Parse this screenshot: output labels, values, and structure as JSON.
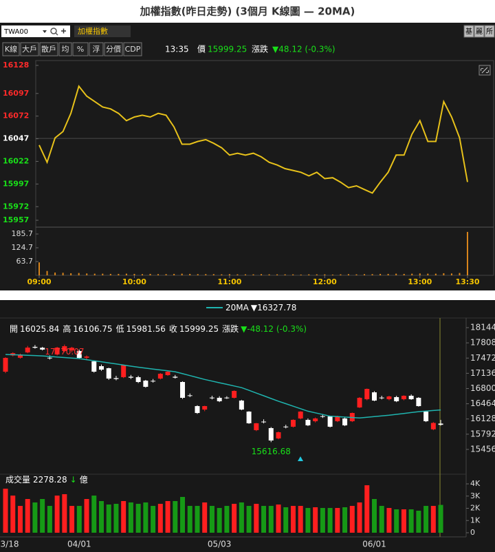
{
  "header": {
    "title": "加權指數(昨日走勢) (3個月 K線圖 — 20MA)"
  },
  "toolbar": {
    "symbol": "TWA00",
    "name": "加權指數",
    "buttons": [
      "基",
      "麗",
      "所"
    ]
  },
  "tabs": {
    "items": [
      "K線",
      "大戶",
      "散戶",
      "均",
      "%",
      "浮",
      "分價",
      "CDP"
    ],
    "time": "13:35",
    "price_label": "價",
    "price": "15999.25",
    "change_label": "漲跌",
    "change": "▼48.12 (-0.3%)"
  },
  "chart_data": [
    {
      "type": "line",
      "x": [
        "09:00",
        "09:05",
        "09:10",
        "09:15",
        "09:20",
        "09:25",
        "09:30",
        "09:35",
        "09:40",
        "09:45",
        "09:50",
        "09:55",
        "10:00",
        "10:05",
        "10:10",
        "10:15",
        "10:20",
        "10:25",
        "10:30",
        "10:35",
        "10:40",
        "10:45",
        "10:50",
        "10:55",
        "11:00",
        "11:05",
        "11:10",
        "11:15",
        "11:20",
        "11:25",
        "11:30",
        "11:35",
        "11:40",
        "11:45",
        "11:50",
        "11:55",
        "12:00",
        "12:05",
        "12:10",
        "12:15",
        "12:20",
        "12:25",
        "12:30",
        "12:35",
        "12:40",
        "12:45",
        "12:50",
        "12:55",
        "13:00",
        "13:05",
        "13:10",
        "13:15",
        "13:20",
        "13:25",
        "13:30"
      ],
      "values": [
        16040,
        16021,
        16048,
        16055,
        16075,
        16105,
        16094,
        16088,
        16082,
        16080,
        16075,
        16067,
        16071,
        16073,
        16071,
        16075,
        16073,
        16060,
        16041,
        16041,
        16044,
        16046,
        16042,
        16037,
        16029,
        16031,
        16029,
        16031,
        16027,
        16021,
        16018,
        16014,
        16012,
        16010,
        16006,
        16010,
        16003,
        16004,
        15999,
        15993,
        15995,
        15991,
        15987,
        15999,
        16010,
        16029,
        16029,
        16052,
        16067,
        16044,
        16044,
        16088,
        16071,
        16048,
        15999.25
      ],
      "color": "#e8c21a",
      "xlim": [
        "09:00",
        "13:30"
      ],
      "xticks": [
        "09:00",
        "10:00",
        "11:00",
        "12:00",
        "13:00",
        "13:30"
      ],
      "ylim": [
        15957,
        16128
      ],
      "yticks": [
        15957,
        15972,
        15997,
        16022,
        16047,
        16072,
        16097,
        16128
      ],
      "reference": 16047.37,
      "up_color": "#ff2a2a",
      "down_color": "#19e019",
      "flat_color": "#ffffff"
    },
    {
      "type": "bar",
      "values": [
        60,
        22,
        15,
        14,
        12,
        13,
        11,
        10,
        10,
        9,
        9,
        10,
        9,
        8,
        9,
        8,
        8,
        9,
        10,
        9,
        8,
        8,
        8,
        7,
        8,
        7,
        7,
        7,
        8,
        7,
        7,
        7,
        7,
        6,
        7,
        7,
        7,
        6,
        7,
        8,
        7,
        8,
        8,
        9,
        9,
        10,
        9,
        10,
        11,
        10,
        10,
        12,
        11,
        13,
        195
      ],
      "color": "#d9851c",
      "ylim": [
        2.7,
        207
      ],
      "yticks": [
        63.7,
        124.7,
        185.7
      ]
    },
    {
      "type": "candlestick",
      "categories": [
        "3/18",
        null,
        null,
        null,
        null,
        null,
        null,
        null,
        null,
        null,
        "04/01",
        null,
        null,
        null,
        null,
        null,
        null,
        null,
        null,
        null,
        null,
        null,
        null,
        null,
        null,
        null,
        null,
        null,
        null,
        "05/03",
        null,
        null,
        null,
        null,
        null,
        null,
        null,
        null,
        null,
        null,
        null,
        null,
        null,
        null,
        null,
        null,
        null,
        null,
        null,
        null,
        "06/01",
        null,
        null,
        null,
        null,
        null,
        null,
        null,
        null,
        null
      ],
      "open": [
        17172,
        17530,
        17480,
        17597,
        17720,
        17700,
        17480,
        17552,
        17628,
        17640,
        17628,
        17480,
        17400,
        17293,
        17248,
        17030,
        17050,
        17060,
        17050,
        16974,
        16970,
        17020,
        17096,
        17060,
        16944,
        16650,
        16412,
        16336,
        16600,
        16595,
        16600,
        16595,
        16534,
        16291,
        15881,
        16070,
        15926,
        15698,
        15960,
        15957,
        16139,
        16108,
        16078,
        16190,
        16184,
        16078,
        16139,
        16078,
        16382,
        16564,
        16716,
        16600,
        16564,
        16610,
        16564,
        16640,
        16595,
        16291,
        15900,
        16025.84
      ],
      "high": [
        17490,
        17600,
        17570,
        17740,
        17760,
        17720,
        17530,
        17720,
        17770.07,
        17720,
        17660,
        17530,
        17420,
        17330,
        17260,
        17080,
        17330,
        17100,
        17080,
        16990,
        17010,
        17140,
        17190,
        17100,
        16960,
        16690,
        16430,
        16420,
        16640,
        16630,
        16630,
        16760,
        16550,
        16300,
        16040,
        16120,
        15950,
        15850,
        16000,
        16120,
        16300,
        16140,
        16160,
        16230,
        16200,
        16200,
        16160,
        16270,
        16610,
        16800,
        16740,
        16640,
        16640,
        16640,
        16650,
        16670,
        16610,
        16310,
        16060,
        16106.75
      ],
      "low": [
        17140,
        17510,
        17460,
        17580,
        17680,
        17640,
        17440,
        17530,
        17600,
        17600,
        17450,
        17440,
        17150,
        17190,
        16990,
        16980,
        17030,
        17010,
        16920,
        16820,
        16930,
        17000,
        17080,
        17020,
        16570,
        16610,
        16240,
        16300,
        16560,
        16500,
        16570,
        16580,
        16320,
        16020,
        15860,
        16030,
        15616.68,
        15680,
        15920,
        15940,
        16120,
        15970,
        16050,
        16150,
        15940,
        16060,
        15970,
        16060,
        16370,
        16540,
        16520,
        16560,
        16540,
        16500,
        16540,
        16550,
        16400,
        16060,
        15880,
        15981.56
      ],
      "close": [
        17476,
        17580,
        17552,
        17703,
        17700,
        17660,
        17470,
        17703,
        17734,
        17700,
        17476,
        17506,
        17172,
        17217,
        17020,
        17010,
        17324,
        17040,
        16944,
        16838,
        16960,
        17126,
        17172,
        17040,
        16595,
        16640,
        16260,
        16412,
        16590,
        16519,
        16590,
        16747,
        16336,
        16033,
        16033,
        16063,
        15653,
        15835,
        15950,
        16108,
        16291,
        15987,
        16139,
        16180,
        15957,
        16184,
        15987,
        16260,
        16595,
        16791,
        16534,
        16590,
        16625,
        16519,
        16640,
        16564,
        16412,
        16078,
        16040,
        15999.25
      ],
      "up_color": "#ff1f1f",
      "down_color": "#ffffff",
      "ylim": [
        15045,
        18357
      ],
      "yticks": [
        15456,
        15792,
        16128,
        16464,
        16800,
        17136,
        17472,
        17808,
        18144
      ],
      "ma": {
        "name": "20MA",
        "legend_value": "▼16327.78",
        "color": "#1fb5b0",
        "values": [
          17552,
          17546,
          17540,
          17533,
          17527,
          17520,
          17508,
          17496,
          17484,
          17472,
          17460,
          17437,
          17413,
          17390,
          17366,
          17342,
          17318,
          17294,
          17270,
          17250,
          17230,
          17210,
          17190,
          17170,
          17128,
          17085,
          17043,
          17000,
          16964,
          16928,
          16892,
          16856,
          16820,
          16760,
          16700,
          16640,
          16580,
          16520,
          16465,
          16410,
          16355,
          16300,
          16263,
          16227,
          16190,
          16180,
          16170,
          16160,
          16150,
          16165,
          16180,
          16195,
          16210,
          16230,
          16250,
          16270,
          16290,
          16303,
          16315,
          16327.78
        ]
      },
      "info": [
        {
          "label": "開",
          "value": "16025.84"
        },
        {
          "label": "高",
          "value": "16106.75"
        },
        {
          "label": "低",
          "value": "15981.56"
        },
        {
          "label": "收",
          "value": "15999.25"
        }
      ],
      "change_label": "漲跌",
      "change": "▼-48.12 (-0.3%)",
      "max_label": "17770.07",
      "min_label": "15616.68"
    },
    {
      "type": "bar",
      "label": "成交量",
      "last": "2278.28",
      "arrow": "↓",
      "unit": "億",
      "values": [
        3606,
        3042,
        2197,
        2761,
        2479,
        2761,
        2197,
        3042,
        3155,
        2197,
        2197,
        2761,
        3042,
        2592,
        2310,
        2366,
        2592,
        2479,
        2366,
        2479,
        2197,
        2366,
        2592,
        2592,
        2930,
        2197,
        2197,
        2479,
        2197,
        2028,
        2197,
        2366,
        2479,
        2197,
        2366,
        2197,
        2197,
        2310,
        2085,
        2197,
        2197,
        2028,
        2085,
        2028,
        2028,
        2028,
        2085,
        2197,
        2479,
        3887,
        2761,
        2197,
        2028,
        1915,
        1915,
        1915,
        1803,
        2197,
        2197,
        2278.28
      ],
      "up_color": "#ff1f1f",
      "down_color": "#169a16",
      "ylim": [
        0,
        4170
      ],
      "yticks": [
        0,
        {
          "value": 1000,
          "label": "1K"
        },
        {
          "value": 2000,
          "label": "2K"
        },
        {
          "value": 3000,
          "label": "3K"
        },
        {
          "value": 4000,
          "label": "4K"
        }
      ]
    }
  ]
}
